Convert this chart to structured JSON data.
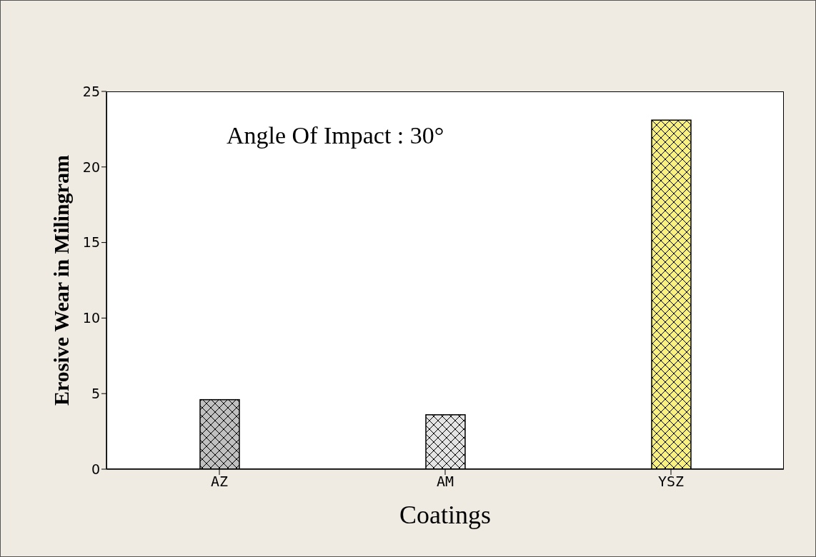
{
  "chart_data": {
    "type": "bar",
    "annotations": [
      "Angle Of Impact : 30°"
    ],
    "xlabel": "Coatings",
    "ylabel": "Erosive Wear in Milingram",
    "categories": [
      "AZ",
      "AM",
      "YSZ"
    ],
    "values": [
      4.6,
      3.6,
      23.1
    ],
    "colors": [
      "#c0c0c0",
      "#e4e4e4",
      "#f8f080"
    ],
    "ylim": [
      0,
      25
    ],
    "yticks": [
      0,
      5,
      10,
      15,
      20,
      25
    ],
    "grid": false
  }
}
